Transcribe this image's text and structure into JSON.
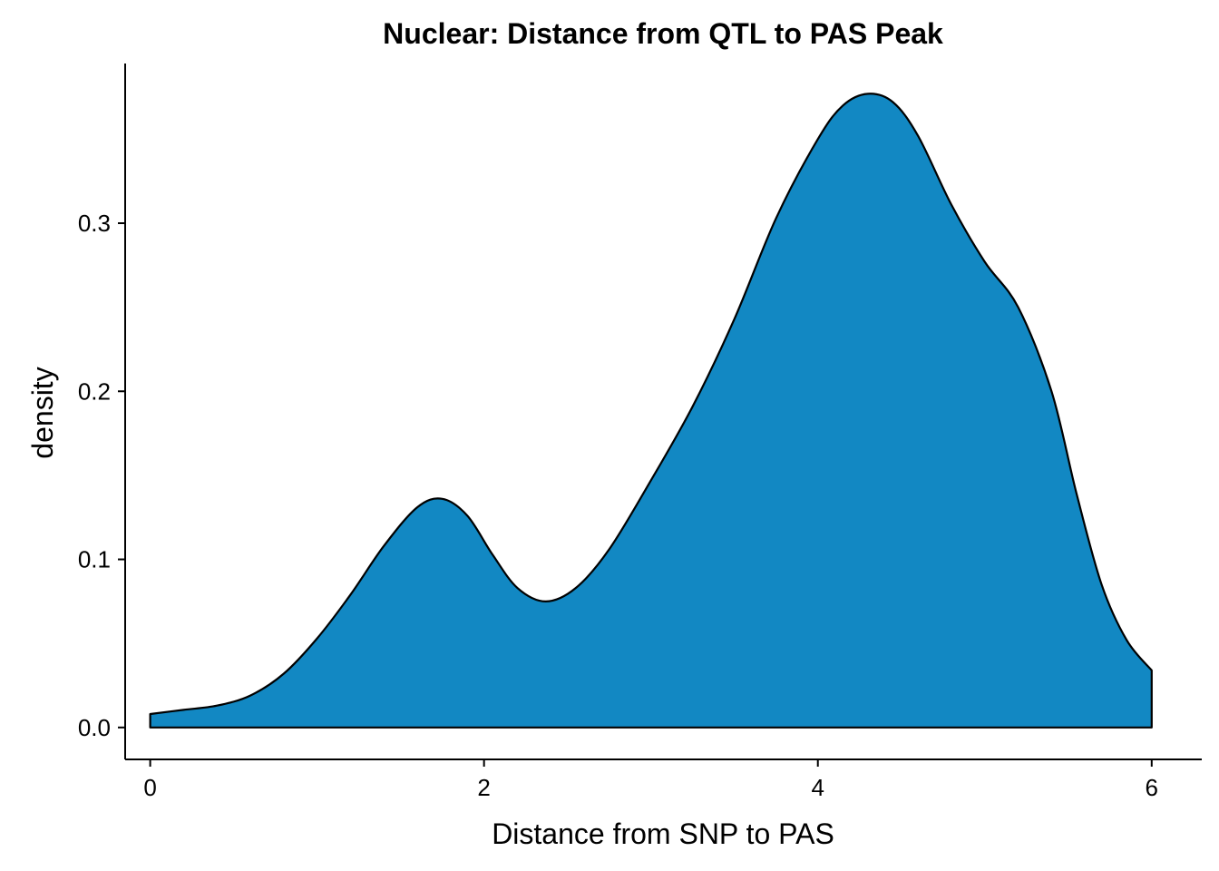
{
  "chart_data": {
    "type": "area",
    "title": "Nuclear: Distance from QTL to PAS Peak",
    "xlabel": "Distance from SNP to PAS",
    "ylabel": "density",
    "xlim": [
      -0.15,
      6.3
    ],
    "ylim": [
      -0.019,
      0.395
    ],
    "x_ticks": [
      0,
      2,
      4,
      6
    ],
    "x_tick_labels": [
      "0",
      "2",
      "4",
      "6"
    ],
    "y_ticks": [
      0.0,
      0.1,
      0.2,
      0.3
    ],
    "y_tick_labels": [
      "0.0",
      "0.1",
      "0.2",
      "0.3"
    ],
    "fill_color": "#1288C3",
    "line_color": "#000000",
    "grid": false,
    "legend": "none",
    "series": [
      {
        "x": [
          0.0,
          0.2,
          0.4,
          0.6,
          0.8,
          1.0,
          1.2,
          1.4,
          1.6,
          1.75,
          1.9,
          2.05,
          2.2,
          2.37,
          2.55,
          2.75,
          3.0,
          3.25,
          3.5,
          3.75,
          4.0,
          4.15,
          4.3,
          4.45,
          4.6,
          4.8,
          5.0,
          5.2,
          5.4,
          5.55,
          5.7,
          5.85,
          6.0
        ],
        "y": [
          0.008,
          0.0105,
          0.013,
          0.019,
          0.032,
          0.053,
          0.079,
          0.108,
          0.131,
          0.136,
          0.126,
          0.103,
          0.083,
          0.075,
          0.083,
          0.106,
          0.147,
          0.191,
          0.243,
          0.303,
          0.35,
          0.37,
          0.377,
          0.372,
          0.352,
          0.311,
          0.277,
          0.25,
          0.2,
          0.139,
          0.085,
          0.052,
          0.034
        ]
      }
    ]
  }
}
